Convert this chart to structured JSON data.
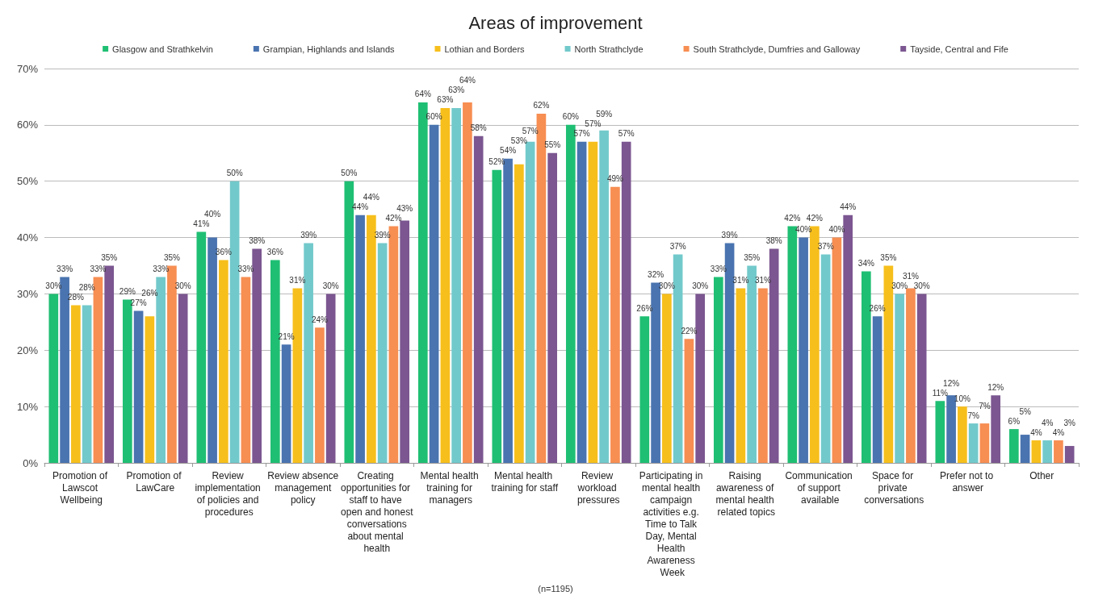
{
  "chart_data": {
    "type": "bar",
    "title": "Areas of improvement",
    "categories": [
      "Promotion of Lawscot Wellbeing",
      "Promotion of LawCare",
      "Review implementation of policies and procedures",
      "Review absence management policy",
      "Creating opportunities for staff to have open and honest conversations about mental health",
      "Mental health training for managers",
      "Mental health training for staff",
      "Review workload pressures",
      "Participating in mental health campaign activities e.g. Time to Talk Day, Mental Health Awareness Week",
      "Raising awareness of mental health related topics",
      "Communication of support available",
      "Space for private conversations",
      "Prefer not to answer",
      "Other"
    ],
    "series": [
      {
        "name": "Glasgow and Strathkelvin",
        "color": "#1fbf73",
        "values": [
          30,
          29,
          41,
          36,
          50,
          64,
          52,
          60,
          26,
          33,
          42,
          34,
          11,
          6
        ],
        "value_labels": [
          "30%",
          "29%",
          "41%",
          "36%",
          "50%",
          "64%",
          "52%",
          "60%",
          "26%",
          "33%",
          "42%",
          "34%",
          "11%",
          "6%"
        ]
      },
      {
        "name": "Grampian, Highlands and Islands",
        "color": "#4a74b0",
        "values": [
          33,
          27,
          40,
          21,
          44,
          60,
          54,
          57,
          32,
          39,
          40,
          26,
          12,
          5
        ],
        "value_labels": [
          "33%",
          "27%",
          "40%",
          "21%",
          "44%",
          "60%",
          "54%",
          "57%",
          "32%",
          "39%",
          "40%",
          "26%",
          "12%",
          "5%"
        ]
      },
      {
        "name": "Lothian and Borders",
        "color": "#f7bf1c",
        "values": [
          28,
          26,
          36,
          31,
          44,
          63,
          53,
          57,
          30,
          31,
          42,
          35,
          10,
          4
        ],
        "value_labels": [
          "28%",
          "26%",
          "36%",
          "31%",
          "44%",
          "63%",
          "53%",
          "57%",
          "30%",
          "31%",
          "42%",
          "35%",
          "10%",
          "4%"
        ]
      },
      {
        "name": "North Strathclyde",
        "color": "#72c9cb",
        "values": [
          28,
          33,
          50,
          39,
          39,
          63,
          57,
          59,
          37,
          35,
          37,
          30,
          7,
          4
        ],
        "value_labels": [
          "28%",
          "33%",
          "50%",
          "39%",
          "39%",
          "63%",
          "57%",
          "59%",
          "37%",
          "35%",
          "37%",
          "30%",
          "7%",
          "4%"
        ]
      },
      {
        "name": "South Strathclyde, Dumfries and Galloway",
        "color": "#f78e52",
        "values": [
          33,
          35,
          33,
          24,
          42,
          64,
          62,
          49,
          22,
          31,
          40,
          31,
          7,
          4
        ],
        "value_labels": [
          "33%",
          "35%",
          "33%",
          "24%",
          "42%",
          "64%",
          "62%",
          "49%",
          "22%",
          "31%",
          "40%",
          "31%",
          "7%",
          "4%"
        ]
      },
      {
        "name": "Tayside, Central and Fife",
        "color": "#7b5690",
        "values": [
          35,
          30,
          38,
          30,
          43,
          58,
          55,
          57,
          30,
          38,
          44,
          30,
          12,
          3
        ],
        "value_labels": [
          "35%",
          "30%",
          "38%",
          "30%",
          "43%",
          "58%",
          "55%",
          "57%",
          "30%",
          "38%",
          "44%",
          "30%",
          "12%",
          "3%"
        ]
      }
    ],
    "ylim": [
      0,
      70
    ],
    "yticks": [
      {
        "value": 0,
        "label": "0%"
      },
      {
        "value": 10,
        "label": "10%"
      },
      {
        "value": 20,
        "label": "20%"
      },
      {
        "value": 30,
        "label": "30%"
      },
      {
        "value": 40,
        "label": "40%"
      },
      {
        "value": 50,
        "label": "50%"
      },
      {
        "value": 60,
        "label": "60%"
      },
      {
        "value": 70,
        "label": "70%"
      }
    ],
    "grid": "y",
    "legend": "top",
    "annotations": [
      "(n=1195)"
    ]
  }
}
